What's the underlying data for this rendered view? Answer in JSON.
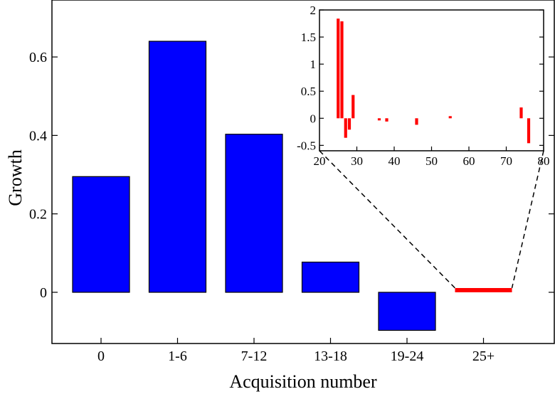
{
  "colors": {
    "main_bar": "#0000ff",
    "inset_bar": "#ff0000",
    "axis": "#000000"
  },
  "chart_data": [
    {
      "type": "bar",
      "xlabel": "Acquisition number",
      "ylabel": "Growth",
      "categories": [
        "0",
        "1-6",
        "7-12",
        "13-18",
        "19-24",
        "25+"
      ],
      "values": [
        0.295,
        0.64,
        0.403,
        0.077,
        -0.097,
        0.005
      ],
      "ylim": [
        -0.12,
        0.7
      ],
      "yticks": [
        0,
        0.2,
        0.4,
        0.6
      ],
      "ytick_labels": [
        "0",
        "0.2",
        "0.4",
        "0.6"
      ],
      "grid": false
    },
    {
      "type": "bar",
      "xlim": [
        20,
        80
      ],
      "ylim": [
        -0.6,
        2
      ],
      "xticks": [
        20,
        30,
        40,
        50,
        60,
        70,
        80
      ],
      "xtick_labels": [
        "20",
        "30",
        "40",
        "50",
        "60",
        "70",
        "80"
      ],
      "yticks": [
        -0.5,
        0,
        0.5,
        1,
        1.5,
        2
      ],
      "ytick_labels": [
        "-0.5",
        "0",
        "0.5",
        "1",
        "1.5",
        "2"
      ],
      "x": [
        25,
        26,
        27,
        28,
        29,
        36,
        38,
        46,
        55,
        74,
        76
      ],
      "values": [
        1.84,
        1.79,
        -0.36,
        -0.21,
        0.43,
        -0.02,
        -0.06,
        -0.12,
        0.02,
        0.2,
        -0.46
      ],
      "grid": false
    }
  ]
}
